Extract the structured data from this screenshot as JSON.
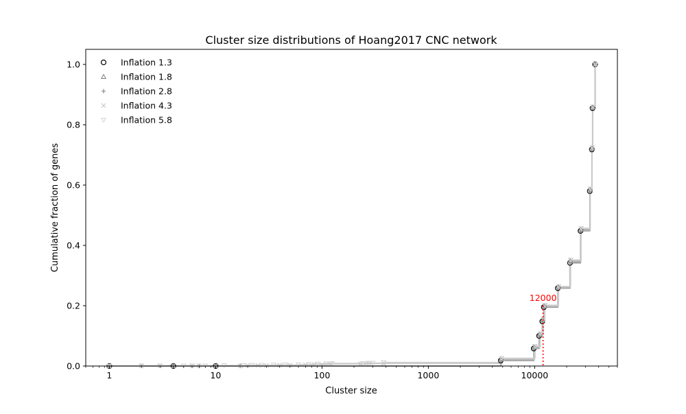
{
  "chart_data": {
    "type": "line",
    "title": "Cluster size distributions of Hoang2017 CNC network",
    "xlabel": "Cluster size",
    "ylabel": "Cumulative fraction of genes",
    "xscale": "log",
    "xlim": [
      0.6,
      60000
    ],
    "ylim": [
      0,
      1.05
    ],
    "x_ticks": [
      {
        "value": 1,
        "label": "1"
      },
      {
        "value": 10,
        "label": "10"
      },
      {
        "value": 100,
        "label": "100"
      },
      {
        "value": 1000,
        "label": "1000"
      },
      {
        "value": 10000,
        "label": "10000"
      }
    ],
    "y_ticks": [
      {
        "value": 0,
        "label": "0.0"
      },
      {
        "value": 0.2,
        "label": "0.2"
      },
      {
        "value": 0.4,
        "label": "0.4"
      },
      {
        "value": 0.6,
        "label": "0.6"
      },
      {
        "value": 0.8,
        "label": "0.8"
      },
      {
        "value": 1.0,
        "label": "1.0"
      }
    ],
    "legend_position": "top-left",
    "annotation": {
      "label": "12000",
      "x": 12000,
      "y": 0.2,
      "color": "#ff0000"
    },
    "series": [
      {
        "name": "Inflation 1.3",
        "marker": "circle",
        "color": "#000000",
        "points": [
          [
            1,
            0.0
          ],
          [
            4,
            0.0
          ],
          [
            10,
            0.0
          ],
          [
            4800,
            0.018
          ],
          [
            9800,
            0.058
          ],
          [
            11000,
            0.1
          ],
          [
            11800,
            0.148
          ],
          [
            12200,
            0.195
          ],
          [
            16500,
            0.258
          ],
          [
            21500,
            0.342
          ],
          [
            27000,
            0.448
          ],
          [
            33000,
            0.58
          ],
          [
            34500,
            0.718
          ],
          [
            35000,
            0.855
          ],
          [
            37000,
            1.0
          ]
        ]
      },
      {
        "name": "Inflation 1.8",
        "marker": "triangle-up",
        "color": "#808080",
        "points": [
          [
            1,
            0.0
          ],
          [
            4,
            0.0
          ],
          [
            10,
            0.0
          ],
          [
            4800,
            0.022
          ],
          [
            9900,
            0.062
          ],
          [
            11100,
            0.105
          ],
          [
            11900,
            0.152
          ],
          [
            12300,
            0.198
          ],
          [
            16600,
            0.262
          ],
          [
            21600,
            0.348
          ],
          [
            27200,
            0.452
          ],
          [
            33200,
            0.585
          ],
          [
            34600,
            0.722
          ],
          [
            35100,
            0.858
          ],
          [
            37100,
            1.0
          ]
        ]
      },
      {
        "name": "Inflation 2.8",
        "marker": "plus",
        "color": "#808080",
        "points": [
          [
            1,
            0.0
          ],
          [
            2,
            0.0
          ],
          [
            4,
            0.0
          ],
          [
            7,
            0.0
          ],
          [
            10,
            0.0
          ],
          [
            17,
            0.0
          ],
          [
            4850,
            0.02
          ],
          [
            9850,
            0.06
          ],
          [
            11050,
            0.102
          ],
          [
            11850,
            0.15
          ],
          [
            12250,
            0.197
          ],
          [
            16550,
            0.26
          ],
          [
            21550,
            0.345
          ],
          [
            27100,
            0.45
          ],
          [
            33100,
            0.582
          ],
          [
            34550,
            0.72
          ],
          [
            35050,
            0.856
          ],
          [
            37050,
            1.0
          ]
        ]
      },
      {
        "name": "Inflation 4.3",
        "marker": "x",
        "color": "#c0c0c0",
        "points": [
          [
            1,
            0.0
          ],
          [
            2,
            0.001
          ],
          [
            3,
            0.001
          ],
          [
            4,
            0.001
          ],
          [
            6,
            0.001
          ],
          [
            7,
            0.001
          ],
          [
            10,
            0.001
          ],
          [
            17,
            0.001
          ],
          [
            20,
            0.002
          ],
          [
            25,
            0.002
          ],
          [
            30,
            0.002
          ],
          [
            40,
            0.003
          ],
          [
            50,
            0.003
          ],
          [
            70,
            0.004
          ],
          [
            85,
            0.005
          ],
          [
            100,
            0.005
          ],
          [
            110,
            0.006
          ],
          [
            120,
            0.007
          ],
          [
            230,
            0.007
          ],
          [
            260,
            0.008
          ],
          [
            280,
            0.008
          ],
          [
            380,
            0.009
          ],
          [
            4900,
            0.024
          ],
          [
            10000,
            0.064
          ],
          [
            11200,
            0.107
          ],
          [
            12000,
            0.154
          ],
          [
            12400,
            0.2
          ],
          [
            16700,
            0.263
          ],
          [
            21700,
            0.35
          ],
          [
            27300,
            0.455
          ],
          [
            33300,
            0.587
          ],
          [
            34700,
            0.724
          ],
          [
            35200,
            0.859
          ],
          [
            37200,
            1.0
          ]
        ]
      },
      {
        "name": "Inflation 5.8",
        "marker": "triangle-down",
        "color": "#d3d3d3",
        "points": [
          [
            1,
            0.0
          ],
          [
            2,
            0.001
          ],
          [
            3,
            0.001
          ],
          [
            5,
            0.001
          ],
          [
            6,
            0.001
          ],
          [
            8,
            0.001
          ],
          [
            12,
            0.002
          ],
          [
            18,
            0.002
          ],
          [
            22,
            0.003
          ],
          [
            27,
            0.003
          ],
          [
            35,
            0.004
          ],
          [
            45,
            0.004
          ],
          [
            60,
            0.005
          ],
          [
            75,
            0.006
          ],
          [
            90,
            0.007
          ],
          [
            110,
            0.008
          ],
          [
            125,
            0.009
          ],
          [
            240,
            0.009
          ],
          [
            270,
            0.01
          ],
          [
            300,
            0.01
          ],
          [
            380,
            0.012
          ],
          [
            4900,
            0.026
          ],
          [
            10100,
            0.066
          ],
          [
            11300,
            0.108
          ],
          [
            12100,
            0.156
          ],
          [
            12500,
            0.202
          ],
          [
            16800,
            0.264
          ],
          [
            21800,
            0.352
          ],
          [
            27400,
            0.457
          ],
          [
            33400,
            0.588
          ],
          [
            34800,
            0.725
          ],
          [
            35300,
            0.86
          ],
          [
            37300,
            1.0
          ]
        ]
      }
    ]
  }
}
